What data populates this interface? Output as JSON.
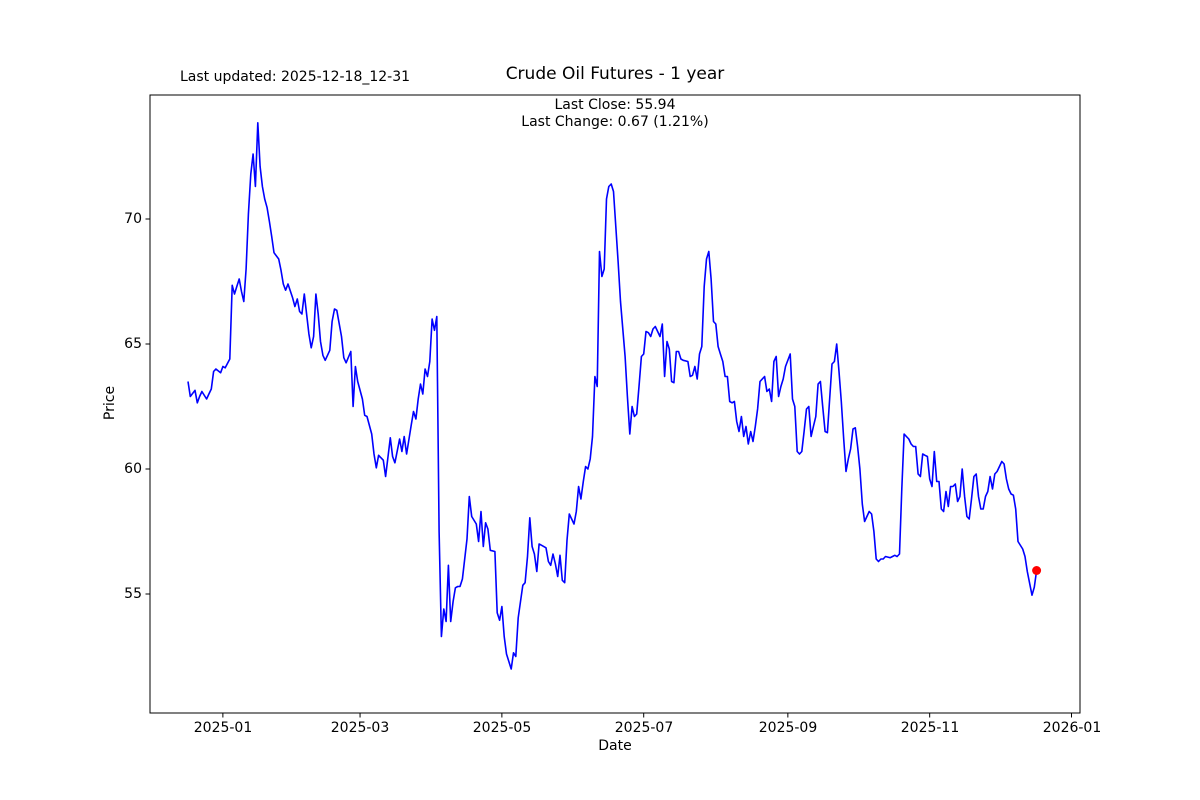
{
  "header": {
    "last_updated": "Last updated: 2025-12-18_12-31",
    "title": "Crude Oil Futures - 1 year",
    "last_close_line": "Last Close: 55.94",
    "last_change_line": "Last Change: 0.67 (1.21%)"
  },
  "chart_data": {
    "type": "line",
    "title": "Crude Oil Futures - 1 year",
    "xlabel": "Date",
    "ylabel": "Price",
    "legend": "none",
    "grid": false,
    "line_color": "#0000ff",
    "marker_color": "#ff0000",
    "last_close": 55.94,
    "last_change": 0.67,
    "last_change_pct": "1.21%",
    "ylim": [
      50.2,
      75.0
    ],
    "y_ticks": [
      {
        "label": "55",
        "value": 55
      },
      {
        "label": "60",
        "value": 60
      },
      {
        "label": "65",
        "value": 65
      },
      {
        "label": "70",
        "value": 70
      }
    ],
    "x_ticks": [
      {
        "label": "2025-01",
        "d": 15
      },
      {
        "label": "2025-03",
        "d": 74
      },
      {
        "label": "2025-05",
        "d": 135
      },
      {
        "label": "2025-07",
        "d": 196
      },
      {
        "label": "2025-09",
        "d": 258
      },
      {
        "label": "2025-11",
        "d": 319
      },
      {
        "label": "2026-01",
        "d": 380
      }
    ],
    "x_unit": "days since 2024-12-17",
    "points": [
      [
        0,
        63.5
      ],
      [
        1,
        62.9
      ],
      [
        3,
        63.15
      ],
      [
        4,
        62.65
      ],
      [
        5,
        62.9
      ],
      [
        6,
        63.1
      ],
      [
        8,
        62.8
      ],
      [
        9,
        63.0
      ],
      [
        10,
        63.2
      ],
      [
        11,
        63.9
      ],
      [
        12,
        64.0
      ],
      [
        14,
        63.85
      ],
      [
        15,
        64.1
      ],
      [
        16,
        64.05
      ],
      [
        18,
        64.4
      ],
      [
        19,
        67.35
      ],
      [
        20,
        67.0
      ],
      [
        21,
        67.3
      ],
      [
        22,
        67.6
      ],
      [
        23,
        67.1
      ],
      [
        24,
        66.7
      ],
      [
        25,
        68.0
      ],
      [
        26,
        70.2
      ],
      [
        27,
        71.8
      ],
      [
        28,
        72.6
      ],
      [
        29,
        71.3
      ],
      [
        30,
        73.85
      ],
      [
        31,
        72.1
      ],
      [
        32,
        71.3
      ],
      [
        33,
        70.8
      ],
      [
        34,
        70.45
      ],
      [
        35,
        69.9
      ],
      [
        36,
        69.3
      ],
      [
        37,
        68.65
      ],
      [
        39,
        68.4
      ],
      [
        40,
        67.95
      ],
      [
        41,
        67.4
      ],
      [
        42,
        67.15
      ],
      [
        43,
        67.4
      ],
      [
        45,
        66.85
      ],
      [
        46,
        66.5
      ],
      [
        47,
        66.8
      ],
      [
        48,
        66.3
      ],
      [
        49,
        66.2
      ],
      [
        50,
        67.0
      ],
      [
        51,
        66.2
      ],
      [
        52,
        65.4
      ],
      [
        53,
        64.85
      ],
      [
        54,
        65.3
      ],
      [
        55,
        67.0
      ],
      [
        56,
        66.2
      ],
      [
        57,
        65.1
      ],
      [
        58,
        64.55
      ],
      [
        59,
        64.35
      ],
      [
        61,
        64.75
      ],
      [
        62,
        65.9
      ],
      [
        63,
        66.4
      ],
      [
        64,
        66.35
      ],
      [
        66,
        65.3
      ],
      [
        67,
        64.45
      ],
      [
        68,
        64.25
      ],
      [
        70,
        64.7
      ],
      [
        71,
        62.5
      ],
      [
        72,
        64.1
      ],
      [
        73,
        63.5
      ],
      [
        75,
        62.8
      ],
      [
        76,
        62.15
      ],
      [
        77,
        62.1
      ],
      [
        79,
        61.4
      ],
      [
        80,
        60.6
      ],
      [
        81,
        60.05
      ],
      [
        82,
        60.55
      ],
      [
        84,
        60.35
      ],
      [
        85,
        59.7
      ],
      [
        87,
        61.25
      ],
      [
        88,
        60.5
      ],
      [
        89,
        60.25
      ],
      [
        91,
        61.2
      ],
      [
        92,
        60.7
      ],
      [
        93,
        61.3
      ],
      [
        94,
        60.6
      ],
      [
        96,
        61.75
      ],
      [
        97,
        62.3
      ],
      [
        98,
        62.0
      ],
      [
        99,
        62.8
      ],
      [
        100,
        63.4
      ],
      [
        101,
        63.0
      ],
      [
        102,
        64.0
      ],
      [
        103,
        63.7
      ],
      [
        104,
        64.3
      ],
      [
        105,
        66.0
      ],
      [
        106,
        65.55
      ],
      [
        107,
        66.1
      ],
      [
        108,
        57.5
      ],
      [
        109,
        53.3
      ],
      [
        110,
        54.4
      ],
      [
        111,
        53.9
      ],
      [
        112,
        56.15
      ],
      [
        113,
        53.9
      ],
      [
        114,
        54.7
      ],
      [
        115,
        55.25
      ],
      [
        116,
        55.3
      ],
      [
        117,
        55.3
      ],
      [
        118,
        55.6
      ],
      [
        120,
        57.2
      ],
      [
        121,
        58.9
      ],
      [
        122,
        58.1
      ],
      [
        124,
        57.8
      ],
      [
        125,
        57.1
      ],
      [
        126,
        58.3
      ],
      [
        127,
        56.9
      ],
      [
        128,
        57.85
      ],
      [
        129,
        57.6
      ],
      [
        130,
        56.75
      ],
      [
        132,
        56.7
      ],
      [
        133,
        54.25
      ],
      [
        134,
        53.95
      ],
      [
        135,
        54.5
      ],
      [
        136,
        53.3
      ],
      [
        137,
        52.6
      ],
      [
        139,
        52.0
      ],
      [
        140,
        52.65
      ],
      [
        141,
        52.5
      ],
      [
        142,
        54.05
      ],
      [
        144,
        55.35
      ],
      [
        145,
        55.45
      ],
      [
        146,
        56.5
      ],
      [
        147,
        58.05
      ],
      [
        148,
        56.9
      ],
      [
        149,
        56.6
      ],
      [
        150,
        55.9
      ],
      [
        151,
        57.0
      ],
      [
        152,
        56.95
      ],
      [
        154,
        56.85
      ],
      [
        155,
        56.3
      ],
      [
        156,
        56.15
      ],
      [
        157,
        56.6
      ],
      [
        158,
        56.2
      ],
      [
        159,
        55.7
      ],
      [
        160,
        56.55
      ],
      [
        161,
        55.55
      ],
      [
        162,
        55.45
      ],
      [
        163,
        57.15
      ],
      [
        164,
        58.2
      ],
      [
        166,
        57.8
      ],
      [
        167,
        58.3
      ],
      [
        168,
        59.3
      ],
      [
        169,
        58.8
      ],
      [
        170,
        59.5
      ],
      [
        171,
        60.1
      ],
      [
        172,
        60.0
      ],
      [
        173,
        60.4
      ],
      [
        174,
        61.3
      ],
      [
        175,
        63.7
      ],
      [
        176,
        63.3
      ],
      [
        177,
        68.7
      ],
      [
        178,
        67.7
      ],
      [
        179,
        68.0
      ],
      [
        180,
        70.8
      ],
      [
        181,
        71.3
      ],
      [
        182,
        71.4
      ],
      [
        183,
        71.1
      ],
      [
        184,
        69.7
      ],
      [
        185,
        68.3
      ],
      [
        186,
        66.7
      ],
      [
        187,
        65.6
      ],
      [
        188,
        64.5
      ],
      [
        189,
        62.9
      ],
      [
        190,
        61.4
      ],
      [
        191,
        62.5
      ],
      [
        192,
        62.1
      ],
      [
        193,
        62.2
      ],
      [
        194,
        63.3
      ],
      [
        195,
        64.5
      ],
      [
        196,
        64.6
      ],
      [
        197,
        65.5
      ],
      [
        198,
        65.45
      ],
      [
        199,
        65.3
      ],
      [
        200,
        65.6
      ],
      [
        201,
        65.7
      ],
      [
        203,
        65.3
      ],
      [
        204,
        65.8
      ],
      [
        205,
        63.7
      ],
      [
        206,
        65.1
      ],
      [
        207,
        64.8
      ],
      [
        208,
        63.5
      ],
      [
        209,
        63.45
      ],
      [
        210,
        64.7
      ],
      [
        211,
        64.7
      ],
      [
        212,
        64.4
      ],
      [
        213,
        64.35
      ],
      [
        215,
        64.3
      ],
      [
        216,
        63.7
      ],
      [
        217,
        63.75
      ],
      [
        218,
        64.1
      ],
      [
        219,
        63.6
      ],
      [
        220,
        64.6
      ],
      [
        221,
        64.9
      ],
      [
        222,
        67.3
      ],
      [
        223,
        68.4
      ],
      [
        224,
        68.7
      ],
      [
        225,
        67.6
      ],
      [
        226,
        65.9
      ],
      [
        227,
        65.8
      ],
      [
        228,
        64.9
      ],
      [
        229,
        64.6
      ],
      [
        230,
        64.3
      ],
      [
        231,
        63.7
      ],
      [
        232,
        63.7
      ],
      [
        233,
        62.7
      ],
      [
        234,
        62.65
      ],
      [
        235,
        62.7
      ],
      [
        236,
        61.9
      ],
      [
        237,
        61.5
      ],
      [
        238,
        62.1
      ],
      [
        239,
        61.3
      ],
      [
        240,
        61.7
      ],
      [
        241,
        61.0
      ],
      [
        242,
        61.5
      ],
      [
        243,
        61.1
      ],
      [
        244,
        61.7
      ],
      [
        245,
        62.4
      ],
      [
        246,
        63.5
      ],
      [
        248,
        63.7
      ],
      [
        249,
        63.1
      ],
      [
        250,
        63.2
      ],
      [
        251,
        62.7
      ],
      [
        252,
        64.3
      ],
      [
        253,
        64.5
      ],
      [
        254,
        62.9
      ],
      [
        255,
        63.3
      ],
      [
        256,
        63.6
      ],
      [
        257,
        64.1
      ],
      [
        259,
        64.6
      ],
      [
        260,
        62.8
      ],
      [
        261,
        62.5
      ],
      [
        262,
        60.7
      ],
      [
        263,
        60.6
      ],
      [
        264,
        60.7
      ],
      [
        265,
        61.5
      ],
      [
        266,
        62.4
      ],
      [
        267,
        62.5
      ],
      [
        268,
        61.3
      ],
      [
        269,
        61.7
      ],
      [
        270,
        62.1
      ],
      [
        271,
        63.4
      ],
      [
        272,
        63.5
      ],
      [
        273,
        62.5
      ],
      [
        274,
        61.5
      ],
      [
        275,
        61.45
      ],
      [
        277,
        64.2
      ],
      [
        278,
        64.3
      ],
      [
        279,
        65.0
      ],
      [
        280,
        63.9
      ],
      [
        281,
        62.7
      ],
      [
        282,
        61.2
      ],
      [
        283,
        59.9
      ],
      [
        284,
        60.4
      ],
      [
        285,
        60.8
      ],
      [
        286,
        61.6
      ],
      [
        287,
        61.65
      ],
      [
        288,
        60.9
      ],
      [
        289,
        60.0
      ],
      [
        290,
        58.6
      ],
      [
        291,
        57.9
      ],
      [
        293,
        58.3
      ],
      [
        294,
        58.2
      ],
      [
        295,
        57.5
      ],
      [
        296,
        56.4
      ],
      [
        297,
        56.3
      ],
      [
        298,
        56.4
      ],
      [
        299,
        56.4
      ],
      [
        300,
        56.5
      ],
      [
        302,
        56.45
      ],
      [
        303,
        56.5
      ],
      [
        304,
        56.55
      ],
      [
        305,
        56.5
      ],
      [
        306,
        56.6
      ],
      [
        307,
        59.2
      ],
      [
        308,
        61.4
      ],
      [
        309,
        61.3
      ],
      [
        310,
        61.2
      ],
      [
        311,
        61.0
      ],
      [
        312,
        60.9
      ],
      [
        313,
        60.9
      ],
      [
        314,
        59.8
      ],
      [
        315,
        59.7
      ],
      [
        316,
        60.6
      ],
      [
        317,
        60.55
      ],
      [
        318,
        60.5
      ],
      [
        319,
        59.6
      ],
      [
        320,
        59.3
      ],
      [
        321,
        60.7
      ],
      [
        322,
        59.5
      ],
      [
        323,
        59.5
      ],
      [
        324,
        58.4
      ],
      [
        325,
        58.3
      ],
      [
        326,
        59.1
      ],
      [
        327,
        58.5
      ],
      [
        328,
        59.3
      ],
      [
        329,
        59.3
      ],
      [
        330,
        59.4
      ],
      [
        331,
        58.7
      ],
      [
        332,
        58.9
      ],
      [
        333,
        60.0
      ],
      [
        334,
        58.9
      ],
      [
        335,
        58.1
      ],
      [
        336,
        58.0
      ],
      [
        337,
        58.8
      ],
      [
        338,
        59.7
      ],
      [
        339,
        59.8
      ],
      [
        340,
        58.9
      ],
      [
        341,
        58.4
      ],
      [
        342,
        58.4
      ],
      [
        343,
        58.9
      ],
      [
        344,
        59.1
      ],
      [
        345,
        59.7
      ],
      [
        346,
        59.2
      ],
      [
        347,
        59.8
      ],
      [
        348,
        59.9
      ],
      [
        350,
        60.3
      ],
      [
        351,
        60.2
      ],
      [
        352,
        59.6
      ],
      [
        353,
        59.2
      ],
      [
        354,
        59.0
      ],
      [
        355,
        58.95
      ],
      [
        356,
        58.4
      ],
      [
        357,
        57.1
      ],
      [
        359,
        56.8
      ],
      [
        360,
        56.5
      ],
      [
        361,
        55.9
      ],
      [
        363,
        54.95
      ],
      [
        364,
        55.27
      ],
      [
        365,
        55.94
      ]
    ]
  }
}
